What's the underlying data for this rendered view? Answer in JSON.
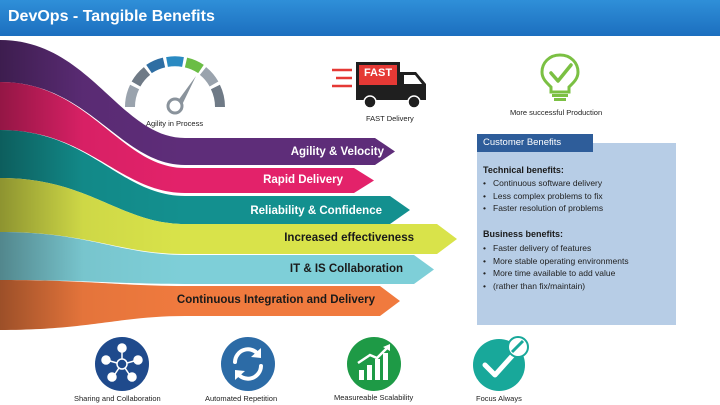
{
  "header": {
    "title": "DevOps - Tangible Benefits"
  },
  "top_icons": [
    {
      "label": "Agility in Process",
      "icon": "gauge-icon"
    },
    {
      "label": "FAST Delivery",
      "icon": "delivery-truck-icon",
      "badge": "FAST"
    },
    {
      "label": "More successful Production",
      "icon": "lightbulb-check-icon"
    }
  ],
  "bands": [
    {
      "label": "Agility & Velocity",
      "color": "#5e2d79",
      "text_color": "#ffffff"
    },
    {
      "label": "Rapid Delivery",
      "color": "#e3226a",
      "text_color": "#ffffff"
    },
    {
      "label": "Reliability & Confidence",
      "color": "#13908f",
      "text_color": "#ffffff"
    },
    {
      "label": "Increased effectiveness",
      "color": "#d9e34a",
      "text_color": "#1a1a1a"
    },
    {
      "label": "IT & IS Collaboration",
      "color": "#7ecfd8",
      "text_color": "#1a1a1a"
    },
    {
      "label": "Continuous Integration and Delivery",
      "color": "#f07a3e",
      "text_color": "#1a1a1a"
    }
  ],
  "panel": {
    "header": "Customer Benefits",
    "technical": {
      "title": "Technical benefits:",
      "items": [
        "Continuous software delivery",
        "Less complex problems to fix",
        "Faster resolution of problems"
      ]
    },
    "business": {
      "title": "Business benefits:",
      "items": [
        "Faster delivery of features",
        "More stable operating environments",
        "More time available to add value",
        "(rather than fix/maintain)"
      ]
    }
  },
  "bottom_icons": [
    {
      "label": "Sharing and Collaboration",
      "icon": "network-people-icon",
      "color": "#1f4a8c"
    },
    {
      "label": "Automated Repetition",
      "icon": "refresh-cycle-icon",
      "color": "#2c6ba6"
    },
    {
      "label": "Measureable Scalability",
      "icon": "bar-growth-icon",
      "color": "#1e9a46"
    },
    {
      "label": "Focus Always",
      "icon": "checkmark-icon",
      "color": "#18a89a"
    }
  ]
}
